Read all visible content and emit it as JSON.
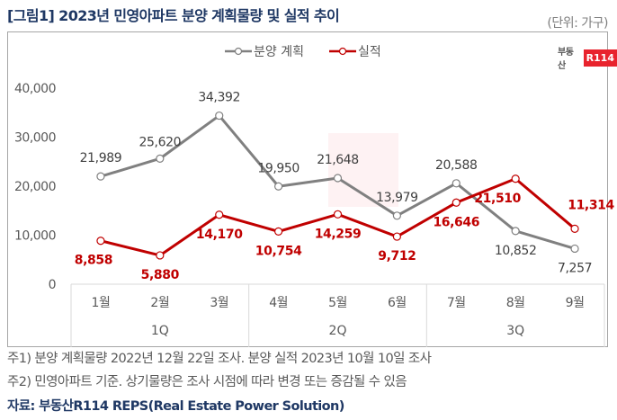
{
  "title": "[그림1] 2023년 민영아파트 분양 계획물량 및 실적 추이",
  "unit_label": "(단위: 가구)",
  "logo": {
    "text": "부동산",
    "badge": "R114",
    "badge_color": "#e8232d"
  },
  "legend": [
    {
      "label": "분양 계획",
      "color": "#808080"
    },
    {
      "label": "실적",
      "color": "#c00000"
    }
  ],
  "notes": [
    "주1) 분양 계획물량 2022년 12월 22일 조사. 분양 실적 2023년 10월 10일 조사",
    "주2) 민영아파트 기준. 상기물량은 조사 시점에 따라 변경 또는 증감될 수 있음"
  ],
  "source": "자료: 부동산R114 REPS(Real Estate Power Solution)",
  "chart_data": {
    "type": "line",
    "title": "[그림1] 2023년 민영아파트 분양 계획물량 및 실적 추이",
    "xlabel": "",
    "ylabel": "",
    "categories": [
      "1월",
      "2월",
      "3월",
      "4월",
      "5월",
      "6월",
      "7월",
      "8월",
      "9월"
    ],
    "category_groups": [
      {
        "label": "1Q",
        "span": 3
      },
      {
        "label": "2Q",
        "span": 3
      },
      {
        "label": "3Q",
        "span": 3
      }
    ],
    "ylim": [
      0,
      40000
    ],
    "yticks": [
      0,
      10000,
      20000,
      30000,
      40000
    ],
    "ytick_labels": [
      "0",
      "10,000",
      "20,000",
      "30,000",
      "40,000"
    ],
    "grid": false,
    "legend_position": "top-center",
    "series": [
      {
        "name": "분양 계획",
        "color": "#808080",
        "values": [
          21989,
          25620,
          34392,
          19950,
          21648,
          13979,
          20588,
          10852,
          7257
        ],
        "labels": [
          "21,989",
          "25,620",
          "34,392",
          "19,950",
          "21,648",
          "13,979",
          "20,588",
          "10,852",
          "7,257"
        ]
      },
      {
        "name": "실적",
        "color": "#c00000",
        "values": [
          8858,
          5880,
          14170,
          10754,
          14259,
          9712,
          16646,
          21510,
          11314
        ],
        "labels": [
          "8,858",
          "5,880",
          "14,170",
          "10,754",
          "14,259",
          "9,712",
          "16,646",
          "21,510",
          "11,314"
        ]
      }
    ]
  }
}
